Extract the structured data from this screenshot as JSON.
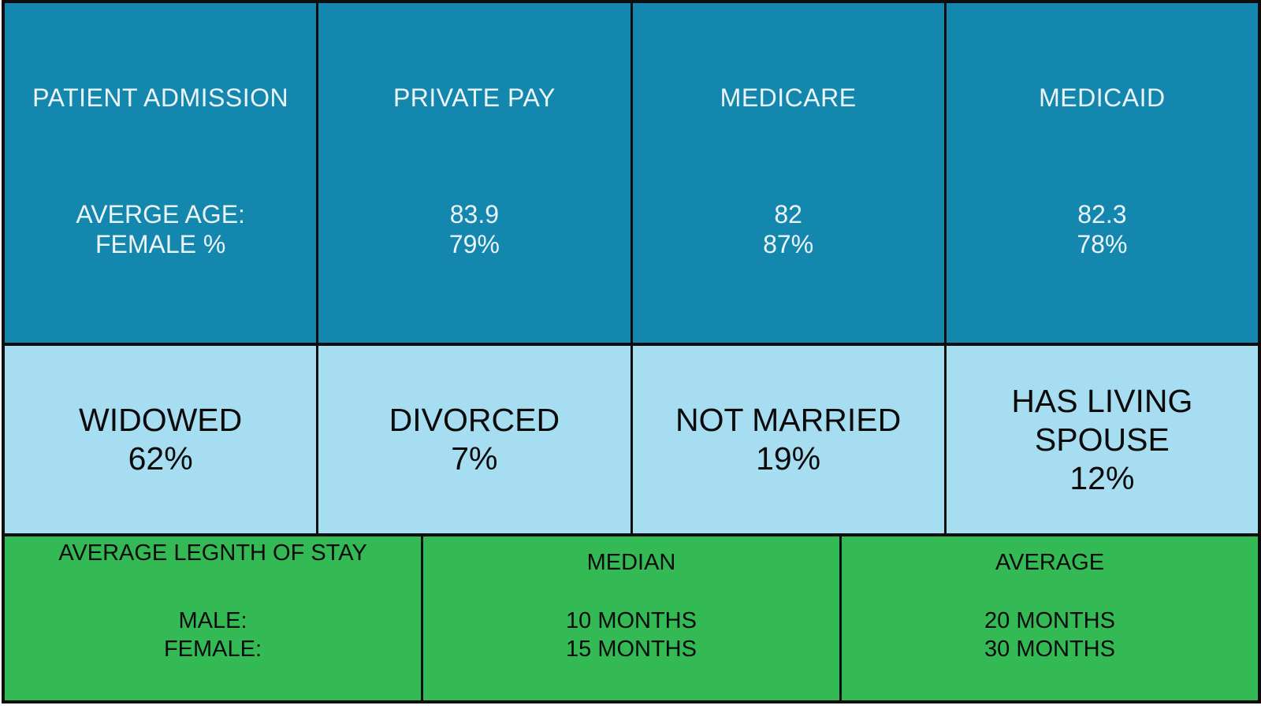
{
  "colors": {
    "teal_row_bg": "#1487AE",
    "light_blue_row_bg": "#A6DDF0",
    "green_row_bg": "#34BA55",
    "border": "#0d0d0d",
    "teal_row_text": "#ECF5F9",
    "dark_text": "#0a0a0a"
  },
  "sections": {
    "admissions": {
      "header": "PATIENT ADMISSION",
      "label_line1": "AVERGE AGE:",
      "label_line2": "FEMALE %",
      "columns": [
        {
          "title": "PRIVATE PAY",
          "avg_age": "83.9",
          "female_pct": "79%"
        },
        {
          "title": "MEDICARE",
          "avg_age": "82",
          "female_pct": "87%"
        },
        {
          "title": "MEDICAID",
          "avg_age": "82.3",
          "female_pct": "78%"
        }
      ]
    },
    "marital": {
      "cells": [
        {
          "label": "WIDOWED",
          "value": "62%"
        },
        {
          "label": "DIVORCED",
          "value": "7%"
        },
        {
          "label": "NOT MARRIED",
          "value": "19%"
        },
        {
          "label": "HAS LIVING SPOUSE",
          "value": "12%"
        }
      ]
    },
    "length_of_stay": {
      "header": "AVERAGE LEGNTH OF STAY",
      "label_line1": "MALE:",
      "label_line2": "FEMALE:",
      "columns": [
        {
          "title": "MEDIAN",
          "male": "10 MONTHS",
          "female": "15 MONTHS"
        },
        {
          "title": "AVERAGE",
          "male": "20 MONTHS",
          "female": "30 MONTHS"
        }
      ]
    }
  },
  "chart_data": [
    {
      "type": "table",
      "title": "PATIENT ADMISSION",
      "row_labels": [
        "AVERGE AGE:",
        "FEMALE %"
      ],
      "columns": [
        "PRIVATE PAY",
        "MEDICARE",
        "MEDICAID"
      ],
      "rows": [
        [
          "83.9",
          "82",
          "82.3"
        ],
        [
          "79%",
          "87%",
          "78%"
        ]
      ]
    },
    {
      "type": "table",
      "title": "Marital status",
      "categories": [
        "WIDOWED",
        "DIVORCED",
        "NOT MARRIED",
        "HAS LIVING SPOUSE"
      ],
      "values": [
        62,
        7,
        19,
        12
      ],
      "unit": "%"
    },
    {
      "type": "table",
      "title": "AVERAGE LEGNTH OF STAY",
      "row_labels": [
        "MALE:",
        "FEMALE:"
      ],
      "columns": [
        "MEDIAN",
        "AVERAGE"
      ],
      "rows": [
        [
          "10 MONTHS",
          "20 MONTHS"
        ],
        [
          "15 MONTHS",
          "30 MONTHS"
        ]
      ]
    }
  ]
}
